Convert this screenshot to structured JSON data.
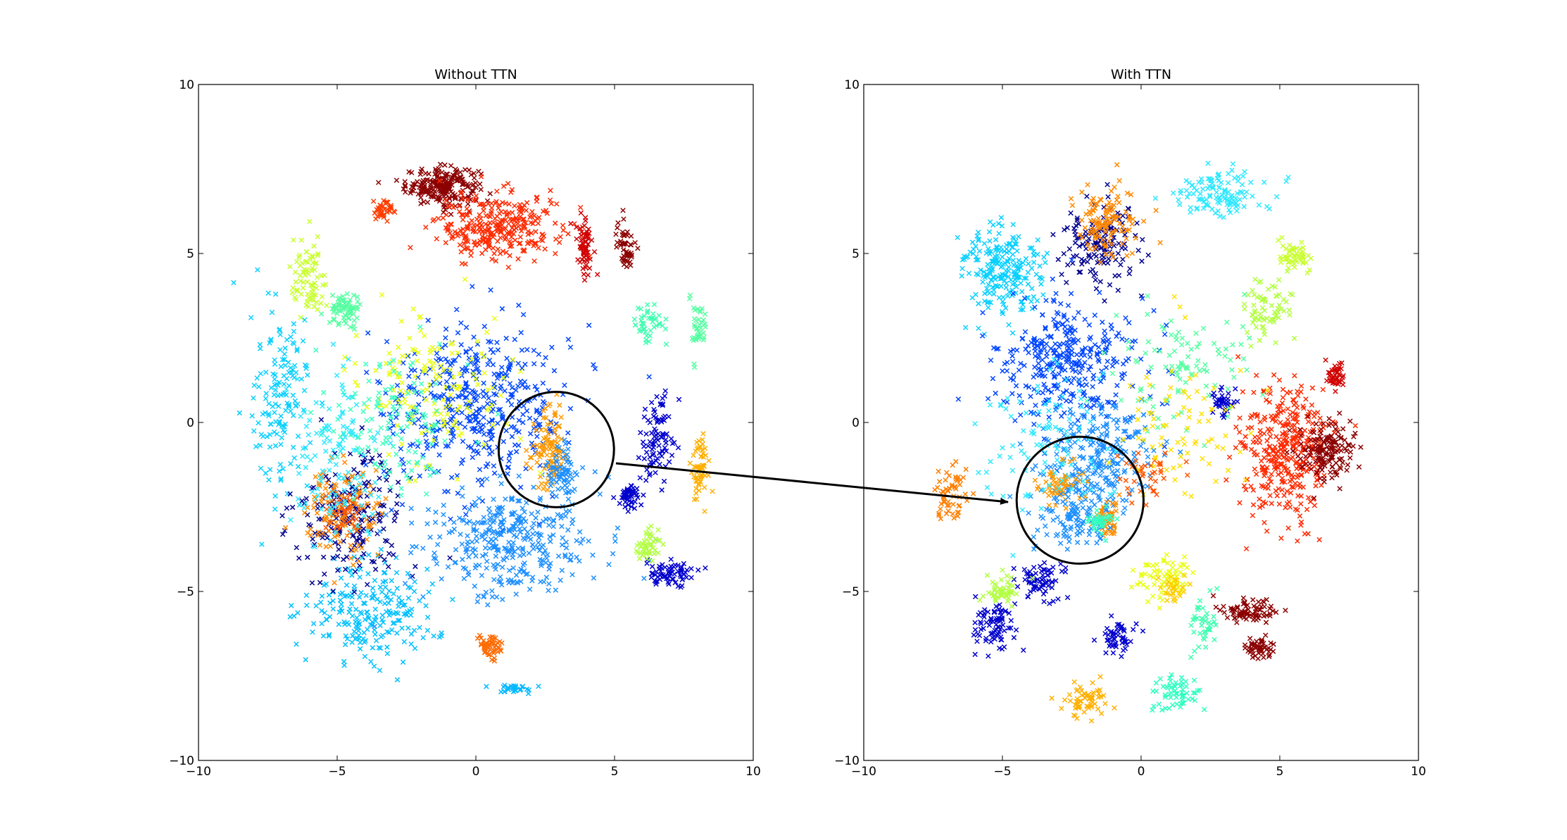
{
  "chart_data": [
    {
      "type": "scatter",
      "title": "Without TTN",
      "xlabel": "",
      "ylabel": "",
      "xlim": [
        -10,
        10
      ],
      "ylim": [
        -10,
        10
      ],
      "xticks": [
        -10,
        -5,
        0,
        5,
        10
      ],
      "yticks": [
        -10,
        -5,
        0,
        5,
        10
      ],
      "xtick_labels": [
        "−10",
        "−5",
        "0",
        "5",
        "10"
      ],
      "ytick_labels": [
        "−10",
        "−5",
        "0",
        "5",
        "10"
      ],
      "marker": "x",
      "grid": false,
      "colormap": "jet",
      "annotation": {
        "type": "circle",
        "center": [
          2.9,
          -0.8
        ],
        "radius": 2.0
      },
      "clusters": [
        {
          "color": "#8b0000",
          "center": [
            -1.2,
            7.0
          ],
          "spread": [
            1.2,
            0.5
          ],
          "n": 220
        },
        {
          "color": "#ff2a00",
          "center": [
            0.8,
            5.8
          ],
          "spread": [
            2.0,
            0.9
          ],
          "n": 300
        },
        {
          "color": "#d00000",
          "center": [
            3.9,
            5.3
          ],
          "spread": [
            0.3,
            0.8
          ],
          "n": 60
        },
        {
          "color": "#8b0000",
          "center": [
            5.4,
            5.2
          ],
          "spread": [
            0.3,
            0.7
          ],
          "n": 50
        },
        {
          "color": "#ff3d00",
          "center": [
            -3.3,
            6.3
          ],
          "spread": [
            0.4,
            0.3
          ],
          "n": 40
        },
        {
          "color": "#c9ff30",
          "center": [
            -6.0,
            4.2
          ],
          "spread": [
            0.6,
            1.0
          ],
          "n": 80
        },
        {
          "color": "#56ffa1",
          "center": [
            -4.7,
            3.3
          ],
          "spread": [
            0.5,
            0.5
          ],
          "n": 70
        },
        {
          "color": "#0ad0ff",
          "center": [
            -7.0,
            0.5
          ],
          "spread": [
            1.0,
            2.5
          ],
          "n": 150
        },
        {
          "color": "#00c0ff",
          "center": [
            -3.8,
            -5.5
          ],
          "spread": [
            2.2,
            1.4
          ],
          "n": 220
        },
        {
          "color": "#000090",
          "center": [
            -4.5,
            -2.8
          ],
          "spread": [
            1.8,
            1.6
          ],
          "n": 200
        },
        {
          "color": "#ff8800",
          "center": [
            -4.8,
            -2.6
          ],
          "spread": [
            1.4,
            1.2
          ],
          "n": 120
        },
        {
          "color": "#0046ff",
          "center": [
            0.0,
            0.5
          ],
          "spread": [
            3.0,
            2.2
          ],
          "n": 450
        },
        {
          "color": "#1e8fff",
          "center": [
            1.2,
            -3.5
          ],
          "spread": [
            2.8,
            1.5
          ],
          "n": 350
        },
        {
          "color": "#ff9900",
          "center": [
            2.7,
            -0.9
          ],
          "spread": [
            0.6,
            1.1
          ],
          "n": 110
        },
        {
          "color": "#1e90ff",
          "center": [
            3.1,
            -1.5
          ],
          "spread": [
            0.5,
            0.9
          ],
          "n": 70
        },
        {
          "color": "#0000cd",
          "center": [
            6.5,
            -0.5
          ],
          "spread": [
            0.6,
            1.2
          ],
          "n": 90
        },
        {
          "color": "#0000cd",
          "center": [
            5.5,
            -2.2
          ],
          "spread": [
            0.4,
            0.3
          ],
          "n": 50
        },
        {
          "color": "#0000cd",
          "center": [
            7.0,
            -4.5
          ],
          "spread": [
            0.8,
            0.4
          ],
          "n": 70
        },
        {
          "color": "#b2ff40",
          "center": [
            6.2,
            -3.6
          ],
          "spread": [
            0.4,
            0.4
          ],
          "n": 45
        },
        {
          "color": "#ffb000",
          "center": [
            8.1,
            -1.3
          ],
          "spread": [
            0.3,
            0.7
          ],
          "n": 60
        },
        {
          "color": "#56ffa1",
          "center": [
            8.0,
            2.8
          ],
          "spread": [
            0.3,
            0.6
          ],
          "n": 40
        },
        {
          "color": "#40ffb0",
          "center": [
            6.2,
            3.0
          ],
          "spread": [
            0.5,
            0.4
          ],
          "n": 45
        },
        {
          "color": "#ff6a00",
          "center": [
            0.5,
            -6.6
          ],
          "spread": [
            0.5,
            0.3
          ],
          "n": 50
        },
        {
          "color": "#ff5500",
          "center": [
            -4.8,
            -2.5
          ],
          "spread": [
            0.6,
            0.6
          ],
          "n": 40
        },
        {
          "color": "#e8ff10",
          "center": [
            -1.5,
            1.0
          ],
          "spread": [
            2.5,
            2.0
          ],
          "n": 150
        },
        {
          "color": "#40ffc0",
          "center": [
            -3.0,
            0.0
          ],
          "spread": [
            2.5,
            2.0
          ],
          "n": 130
        },
        {
          "color": "#2ee8ff",
          "center": [
            -5.0,
            -1.0
          ],
          "spread": [
            1.5,
            2.0
          ],
          "n": 120
        },
        {
          "color": "#00b8ff",
          "center": [
            1.5,
            -7.9
          ],
          "spread": [
            0.6,
            0.15
          ],
          "n": 30
        }
      ]
    },
    {
      "type": "scatter",
      "title": "With TTN",
      "xlabel": "",
      "ylabel": "",
      "xlim": [
        -10,
        10
      ],
      "ylim": [
        -10,
        10
      ],
      "xticks": [
        -10,
        -5,
        0,
        5,
        10
      ],
      "yticks": [
        -10,
        -5,
        0,
        5,
        10
      ],
      "xtick_labels": [
        "−10",
        "−5",
        "0",
        "5",
        "10"
      ],
      "ytick_labels": [
        "−10",
        "−5",
        "0",
        "5",
        "10"
      ],
      "marker": "x",
      "grid": false,
      "colormap": "jet",
      "annotation": {
        "type": "circle",
        "center": [
          -2.2,
          -2.3
        ],
        "radius": 2.2
      },
      "clusters": [
        {
          "color": "#ff2a00",
          "center": [
            5.2,
            -0.9
          ],
          "spread": [
            1.4,
            1.8
          ],
          "n": 350
        },
        {
          "color": "#8b0000",
          "center": [
            6.7,
            -0.9
          ],
          "spread": [
            0.9,
            0.9
          ],
          "n": 150
        },
        {
          "color": "#d00000",
          "center": [
            7.0,
            1.4
          ],
          "spread": [
            0.3,
            0.4
          ],
          "n": 40
        },
        {
          "color": "#8b0000",
          "center": [
            3.9,
            -5.6
          ],
          "spread": [
            0.9,
            0.3
          ],
          "n": 80
        },
        {
          "color": "#8b0000",
          "center": [
            4.2,
            -6.7
          ],
          "spread": [
            0.6,
            0.3
          ],
          "n": 50
        },
        {
          "color": "#0ad0ff",
          "center": [
            -5.0,
            4.5
          ],
          "spread": [
            1.4,
            1.2
          ],
          "n": 220
        },
        {
          "color": "#2ee8ff",
          "center": [
            2.8,
            6.8
          ],
          "spread": [
            1.6,
            0.6
          ],
          "n": 120
        },
        {
          "color": "#c9ff30",
          "center": [
            5.5,
            4.9
          ],
          "spread": [
            0.6,
            0.5
          ],
          "n": 50
        },
        {
          "color": "#b2ff40",
          "center": [
            4.5,
            3.4
          ],
          "spread": [
            1.0,
            0.8
          ],
          "n": 70
        },
        {
          "color": "#000090",
          "center": [
            -1.5,
            5.3
          ],
          "spread": [
            1.3,
            1.2
          ],
          "n": 150
        },
        {
          "color": "#ff8800",
          "center": [
            -1.3,
            6.0
          ],
          "spread": [
            1.0,
            0.9
          ],
          "n": 120
        },
        {
          "color": "#0046ff",
          "center": [
            -2.5,
            1.8
          ],
          "spread": [
            2.3,
            1.7
          ],
          "n": 350
        },
        {
          "color": "#1e8fff",
          "center": [
            -1.5,
            -1.0
          ],
          "spread": [
            2.0,
            1.5
          ],
          "n": 250
        },
        {
          "color": "#ff9900",
          "center": [
            -2.9,
            -1.8
          ],
          "spread": [
            0.8,
            0.6
          ],
          "n": 60
        },
        {
          "color": "#ff8c00",
          "center": [
            -1.2,
            -2.9
          ],
          "spread": [
            0.4,
            0.5
          ],
          "n": 50
        },
        {
          "color": "#1e90ff",
          "center": [
            -2.4,
            -2.8
          ],
          "spread": [
            1.2,
            0.9
          ],
          "n": 110
        },
        {
          "color": "#30ffc0",
          "center": [
            -1.5,
            -2.9
          ],
          "spread": [
            0.4,
            0.3
          ],
          "n": 40
        },
        {
          "color": "#ff7f00",
          "center": [
            -6.9,
            -2.0
          ],
          "spread": [
            0.5,
            0.9
          ],
          "n": 60
        },
        {
          "color": "#0000cd",
          "center": [
            -5.3,
            -6.0
          ],
          "spread": [
            0.6,
            0.7
          ],
          "n": 80
        },
        {
          "color": "#0000cd",
          "center": [
            -3.6,
            -4.7
          ],
          "spread": [
            0.7,
            0.5
          ],
          "n": 70
        },
        {
          "color": "#0000cd",
          "center": [
            -0.8,
            -6.3
          ],
          "spread": [
            0.6,
            0.4
          ],
          "n": 50
        },
        {
          "color": "#0000cd",
          "center": [
            2.9,
            0.6
          ],
          "spread": [
            0.5,
            0.4
          ],
          "n": 40
        },
        {
          "color": "#b2ff40",
          "center": [
            -5.0,
            -5.0
          ],
          "spread": [
            0.6,
            0.4
          ],
          "n": 50
        },
        {
          "color": "#ffb000",
          "center": [
            -2.1,
            -8.2
          ],
          "spread": [
            0.9,
            0.4
          ],
          "n": 60
        },
        {
          "color": "#30ffc0",
          "center": [
            1.2,
            -8.0
          ],
          "spread": [
            0.8,
            0.5
          ],
          "n": 60
        },
        {
          "color": "#40ffb0",
          "center": [
            2.2,
            -5.9
          ],
          "spread": [
            0.4,
            0.7
          ],
          "n": 40
        },
        {
          "color": "#e8ff10",
          "center": [
            1.0,
            -4.6
          ],
          "spread": [
            1.0,
            0.6
          ],
          "n": 70
        },
        {
          "color": "#ffcc00",
          "center": [
            1.1,
            -5.0
          ],
          "spread": [
            0.6,
            0.4
          ],
          "n": 30
        },
        {
          "color": "#56ffa1",
          "center": [
            1.5,
            1.5
          ],
          "spread": [
            2.0,
            1.5
          ],
          "n": 100
        },
        {
          "color": "#ff5500",
          "center": [
            0.3,
            -1.5
          ],
          "spread": [
            1.0,
            0.8
          ],
          "n": 40
        },
        {
          "color": "#2ee8ff",
          "center": [
            -3.5,
            -0.5
          ],
          "spread": [
            2.0,
            2.0
          ],
          "n": 100
        },
        {
          "color": "#ffe000",
          "center": [
            1.5,
            0.0
          ],
          "spread": [
            2.0,
            2.0
          ],
          "n": 80
        }
      ]
    }
  ]
}
